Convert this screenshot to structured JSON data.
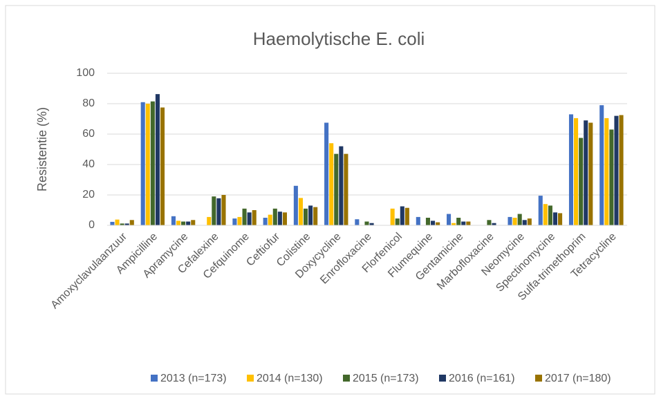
{
  "chart_data": {
    "type": "bar",
    "title": "Haemolytische E. coli",
    "y_label": "Resistentie (%)",
    "categories": [
      "Amoxyclavulaanzuur",
      "Ampicilline",
      "Apramycine",
      "Cefalexine",
      "Cefquinome",
      "Ceftiofur",
      "Colistine",
      "Doxycycline",
      "Enrofloxacine",
      "Florfenicol",
      "Flumequine",
      "Gentamicine",
      "Marbofloxacine",
      "Neomycine",
      "Spectinomycine",
      "Sulfa-trimethoprim",
      "Tetracycline"
    ],
    "series": [
      {
        "name": "2013 (n=173)",
        "color": "#4472c4",
        "values": [
          2.3,
          81,
          6,
          0,
          4.5,
          5,
          26,
          67.5,
          4,
          0,
          5.5,
          7.5,
          0,
          5.5,
          19.5,
          73,
          79
        ]
      },
      {
        "name": "2014 (n=130)",
        "color": "#ffc000",
        "values": [
          3.8,
          80,
          3,
          5.5,
          5.5,
          7,
          18,
          54,
          0,
          11,
          0,
          1.5,
          0,
          5,
          14,
          70.5,
          70.5
        ]
      },
      {
        "name": "2015 (n=173)",
        "color": "#43682b",
        "values": [
          1.2,
          81.5,
          2.5,
          19,
          11,
          11,
          11,
          47,
          2.5,
          4.5,
          5,
          5,
          3.5,
          7.5,
          13,
          57.5,
          63
        ]
      },
      {
        "name": "2016 (n=161)",
        "color": "#203864",
        "values": [
          1.2,
          86.3,
          2.5,
          17.8,
          8.5,
          9,
          13,
          52,
          1.5,
          12.5,
          3,
          2.5,
          1.5,
          3.5,
          8.5,
          69,
          72
        ]
      },
      {
        "name": "2017 (n=180)",
        "color": "#997300",
        "values": [
          3.5,
          77.5,
          3.5,
          20,
          10,
          8.5,
          12,
          47,
          0,
          11.5,
          2,
          2.5,
          0,
          4.5,
          8,
          67.5,
          72.5
        ]
      }
    ],
    "ylim": [
      0,
      100
    ],
    "yticks": [
      0,
      20,
      40,
      60,
      80,
      100
    ],
    "grid": true,
    "legend": "bottom"
  }
}
